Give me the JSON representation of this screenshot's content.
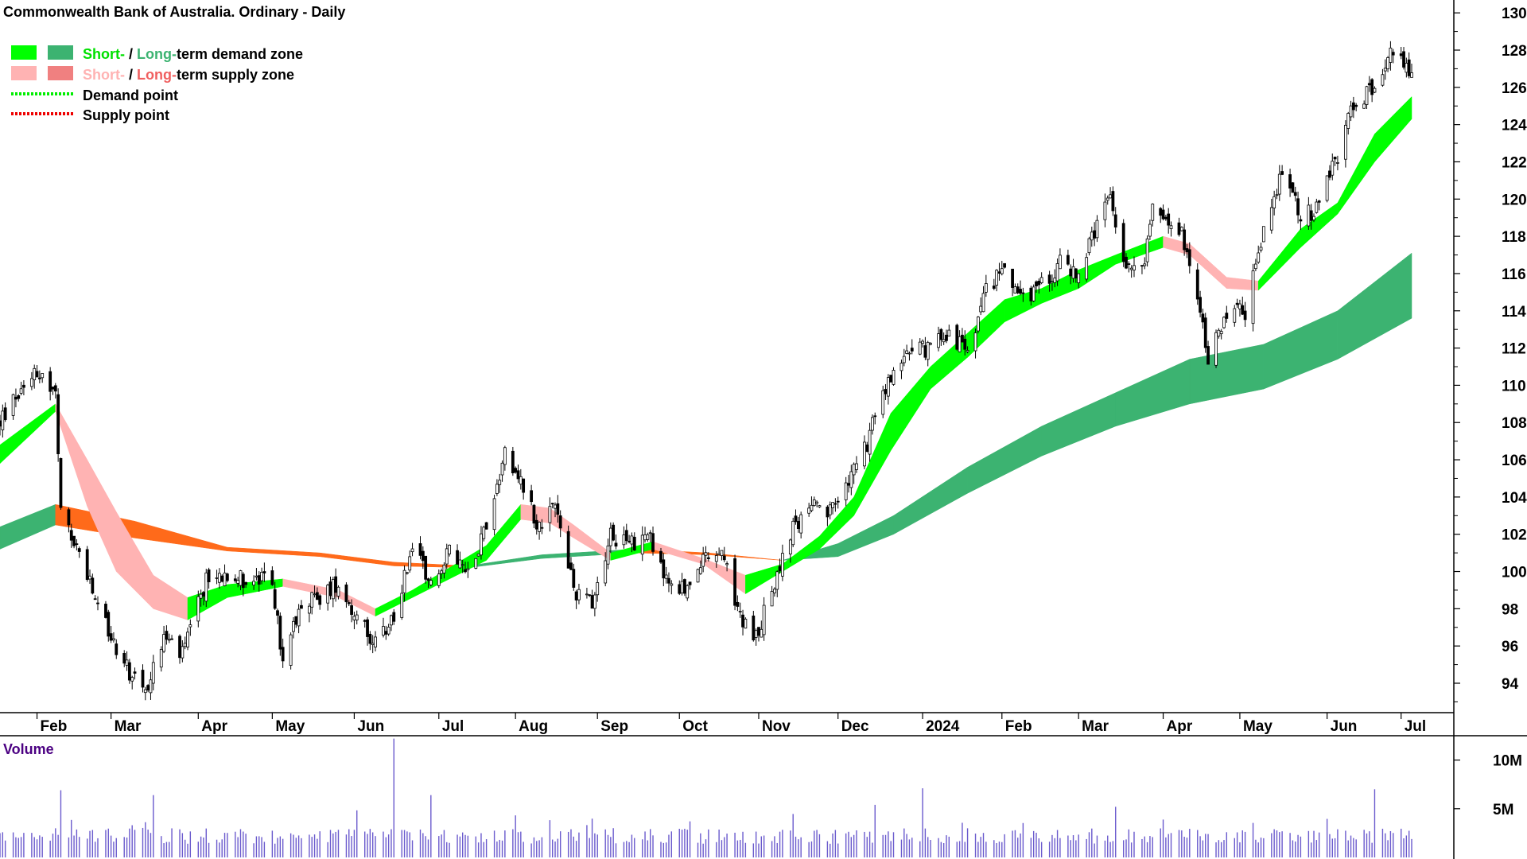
{
  "chart_data": {
    "type": "candlestick",
    "title": "Commonwealth Bank of Australia. Ordinary - Daily",
    "legend": {
      "demand_zone": {
        "short": "Short-",
        "sep": " / ",
        "long": "Long-",
        "rest": "term demand zone"
      },
      "supply_zone": {
        "short": "Short-",
        "sep": " / ",
        "long": "Long-",
        "rest": "term supply zone"
      },
      "demand_point": "Demand point",
      "supply_point": "Supply point"
    },
    "colors": {
      "short_demand": "#00ff00",
      "long_demand": "#3cb371",
      "short_supply": "#ffb3b3",
      "long_supply": "#ff6a1a",
      "demand_point": "#00ee00",
      "supply_point": "#ee0000",
      "candle": "#000000",
      "volume": "#6a5acd",
      "volume_label": "#4b0082"
    },
    "x_axis": {
      "type": "date",
      "range": [
        "2023-01-18",
        "2024-07-05"
      ],
      "tick_labels": [
        {
          "date": "2023-02-01",
          "label": "Feb"
        },
        {
          "date": "2023-03-01",
          "label": "Mar"
        },
        {
          "date": "2023-04-03",
          "label": "Apr"
        },
        {
          "date": "2023-05-01",
          "label": "May"
        },
        {
          "date": "2023-06-01",
          "label": "Jun"
        },
        {
          "date": "2023-07-03",
          "label": "Jul"
        },
        {
          "date": "2023-08-01",
          "label": "Aug"
        },
        {
          "date": "2023-09-01",
          "label": "Sep"
        },
        {
          "date": "2023-10-02",
          "label": "Oct"
        },
        {
          "date": "2023-11-01",
          "label": "Nov"
        },
        {
          "date": "2023-12-01",
          "label": "Dec"
        },
        {
          "date": "2024-01-02",
          "label": "2024"
        },
        {
          "date": "2024-02-01",
          "label": "Feb"
        },
        {
          "date": "2024-03-01",
          "label": "Mar"
        },
        {
          "date": "2024-04-02",
          "label": "Apr"
        },
        {
          "date": "2024-05-01",
          "label": "May"
        },
        {
          "date": "2024-06-03",
          "label": "Jun"
        },
        {
          "date": "2024-07-01",
          "label": "Jul"
        }
      ]
    },
    "y_axis": {
      "range": [
        92,
        130.5
      ],
      "ticks": [
        94,
        96,
        98,
        100,
        102,
        104,
        106,
        108,
        110,
        112,
        114,
        116,
        118,
        120,
        122,
        124,
        126,
        128,
        130
      ]
    },
    "price_path": [
      [
        "2023-01-18",
        108
      ],
      [
        "2023-01-31",
        111
      ],
      [
        "2023-02-08",
        109.5
      ],
      [
        "2023-02-10",
        103
      ],
      [
        "2023-02-17",
        101
      ],
      [
        "2023-02-24",
        98
      ],
      [
        "2023-03-06",
        95
      ],
      [
        "2023-03-14",
        93.5
      ],
      [
        "2023-03-21",
        96.5
      ],
      [
        "2023-03-28",
        95.5
      ],
      [
        "2023-04-06",
        99.5
      ],
      [
        "2023-04-14",
        100
      ],
      [
        "2023-04-21",
        99.5
      ],
      [
        "2023-05-01",
        99.5
      ],
      [
        "2023-05-05",
        95
      ],
      [
        "2023-05-12",
        98.5
      ],
      [
        "2023-05-19",
        98.5
      ],
      [
        "2023-05-26",
        99.5
      ],
      [
        "2023-06-02",
        97.5
      ],
      [
        "2023-06-09",
        96
      ],
      [
        "2023-06-16",
        97.5
      ],
      [
        "2023-06-23",
        101.5
      ],
      [
        "2023-06-30",
        99.5
      ],
      [
        "2023-07-07",
        101
      ],
      [
        "2023-07-14",
        100
      ],
      [
        "2023-07-21",
        102.5
      ],
      [
        "2023-07-28",
        106.5
      ],
      [
        "2023-08-03",
        105
      ],
      [
        "2023-08-09",
        102.5
      ],
      [
        "2023-08-16",
        103.5
      ],
      [
        "2023-08-23",
        99
      ],
      [
        "2023-08-30",
        98.5
      ],
      [
        "2023-09-06",
        102
      ],
      [
        "2023-09-13",
        101.5
      ],
      [
        "2023-09-20",
        102
      ],
      [
        "2023-09-27",
        99.5
      ],
      [
        "2023-10-04",
        99
      ],
      [
        "2023-10-11",
        100.5
      ],
      [
        "2023-10-18",
        101
      ],
      [
        "2023-10-25",
        97.5
      ],
      [
        "2023-10-31",
        96.5
      ],
      [
        "2023-11-06",
        99
      ],
      [
        "2023-11-13",
        102
      ],
      [
        "2023-11-20",
        103.5
      ],
      [
        "2023-11-27",
        103
      ],
      [
        "2023-12-04",
        104.5
      ],
      [
        "2023-12-11",
        106.5
      ],
      [
        "2023-12-18",
        109.5
      ],
      [
        "2023-12-27",
        112
      ],
      [
        "2024-01-05",
        112
      ],
      [
        "2024-01-12",
        113
      ],
      [
        "2024-01-19",
        111.5
      ],
      [
        "2024-01-26",
        115
      ],
      [
        "2024-02-02",
        116.5
      ],
      [
        "2024-02-09",
        114.5
      ],
      [
        "2024-02-16",
        115.5
      ],
      [
        "2024-02-23",
        116.5
      ],
      [
        "2024-03-01",
        116
      ],
      [
        "2024-03-08",
        118.5
      ],
      [
        "2024-03-13",
        120
      ],
      [
        "2024-03-19",
        116
      ],
      [
        "2024-03-26",
        117
      ],
      [
        "2024-03-29",
        119.5
      ],
      [
        "2024-04-05",
        119
      ],
      [
        "2024-04-11",
        117.5
      ],
      [
        "2024-04-16",
        114
      ],
      [
        "2024-04-19",
        111.5
      ],
      [
        "2024-04-26",
        114
      ],
      [
        "2024-05-03",
        114
      ],
      [
        "2024-05-10",
        118.5
      ],
      [
        "2024-05-17",
        121.5
      ],
      [
        "2024-05-24",
        119
      ],
      [
        "2024-05-31",
        119.5
      ],
      [
        "2024-06-06",
        122
      ],
      [
        "2024-06-13",
        125
      ],
      [
        "2024-06-20",
        126
      ],
      [
        "2024-06-27",
        128
      ],
      [
        "2024-07-05",
        126.5
      ]
    ],
    "short_zone": [
      {
        "date": "2023-01-18",
        "a": 105.8,
        "b": 106.8
      },
      {
        "date": "2023-02-08",
        "a": 108.6,
        "b": 109
      },
      {
        "date": "2023-02-20",
        "a": 103.5,
        "b": 106
      },
      {
        "date": "2023-03-03",
        "a": 100,
        "b": 103.2
      },
      {
        "date": "2023-03-17",
        "a": 98,
        "b": 99.8
      },
      {
        "date": "2023-03-30",
        "a": 97.4,
        "b": 98.6
      },
      {
        "date": "2023-04-14",
        "a": 98.6,
        "b": 99.3
      },
      {
        "date": "2023-05-05",
        "a": 99.2,
        "b": 99.6
      },
      {
        "date": "2023-05-26",
        "a": 98.6,
        "b": 99
      },
      {
        "date": "2023-06-09",
        "a": 97.6,
        "b": 98
      },
      {
        "date": "2023-06-23",
        "a": 98.6,
        "b": 99
      },
      {
        "date": "2023-07-07",
        "a": 99.6,
        "b": 100.2
      },
      {
        "date": "2023-07-21",
        "a": 100.6,
        "b": 101.4
      },
      {
        "date": "2023-08-03",
        "a": 102.8,
        "b": 103.6
      },
      {
        "date": "2023-08-14",
        "a": 102.6,
        "b": 103.4
      },
      {
        "date": "2023-08-23",
        "a": 101.8,
        "b": 102.5
      },
      {
        "date": "2023-09-06",
        "a": 100.6,
        "b": 101
      },
      {
        "date": "2023-09-22",
        "a": 101.2,
        "b": 101.6
      },
      {
        "date": "2023-10-11",
        "a": 100.4,
        "b": 100.7
      },
      {
        "date": "2023-10-27",
        "a": 98.8,
        "b": 99.8
      },
      {
        "date": "2023-11-10",
        "a": 100,
        "b": 100.4
      },
      {
        "date": "2023-11-24",
        "a": 101.2,
        "b": 101.9
      },
      {
        "date": "2023-12-07",
        "a": 103,
        "b": 104
      },
      {
        "date": "2023-12-21",
        "a": 106.5,
        "b": 108.5
      },
      {
        "date": "2024-01-05",
        "a": 109.8,
        "b": 111
      },
      {
        "date": "2024-01-19",
        "a": 111.5,
        "b": 112.8
      },
      {
        "date": "2024-02-02",
        "a": 113.4,
        "b": 114.6
      },
      {
        "date": "2024-02-16",
        "a": 114.4,
        "b": 115.2
      },
      {
        "date": "2024-03-01",
        "a": 115.2,
        "b": 116.2
      },
      {
        "date": "2024-03-15",
        "a": 116.5,
        "b": 117
      },
      {
        "date": "2024-04-02",
        "a": 117.4,
        "b": 118
      },
      {
        "date": "2024-04-12",
        "a": 117,
        "b": 117.6
      },
      {
        "date": "2024-04-26",
        "a": 115.2,
        "b": 115.8
      },
      {
        "date": "2024-05-08",
        "a": 115.1,
        "b": 115.6
      },
      {
        "date": "2024-05-24",
        "a": 117.4,
        "b": 118.4
      },
      {
        "date": "2024-06-07",
        "a": 119.2,
        "b": 119.8
      },
      {
        "date": "2024-06-21",
        "a": 122,
        "b": 123.5
      },
      {
        "date": "2024-07-05",
        "a": 124.3,
        "b": 125.5
      }
    ],
    "long_zone": [
      {
        "date": "2023-01-18",
        "a": 101.2,
        "b": 102.4
      },
      {
        "date": "2023-02-08",
        "a": 102.5,
        "b": 103.6
      },
      {
        "date": "2023-03-10",
        "a": 101.8,
        "b": 102.7
      },
      {
        "date": "2023-04-14",
        "a": 101.1,
        "b": 101.3
      },
      {
        "date": "2023-05-19",
        "a": 100.8,
        "b": 101
      },
      {
        "date": "2023-06-16",
        "a": 100.3,
        "b": 100.5
      },
      {
        "date": "2023-07-14",
        "a": 100.2,
        "b": 100.3
      },
      {
        "date": "2023-08-11",
        "a": 100.7,
        "b": 100.9
      },
      {
        "date": "2023-09-15",
        "a": 101,
        "b": 101.2
      },
      {
        "date": "2023-10-13",
        "a": 100.9,
        "b": 101
      },
      {
        "date": "2023-11-10",
        "a": 100.6,
        "b": 100.6
      },
      {
        "date": "2023-12-01",
        "a": 100.8,
        "b": 101.5
      },
      {
        "date": "2023-12-22",
        "a": 102,
        "b": 103
      },
      {
        "date": "2024-01-19",
        "a": 104.2,
        "b": 105.6
      },
      {
        "date": "2024-02-16",
        "a": 106.2,
        "b": 107.8
      },
      {
        "date": "2024-03-15",
        "a": 107.8,
        "b": 109.6
      },
      {
        "date": "2024-04-12",
        "a": 109,
        "b": 111.4
      },
      {
        "date": "2024-05-10",
        "a": 109.8,
        "b": 112.2
      },
      {
        "date": "2024-06-07",
        "a": 111.4,
        "b": 114
      },
      {
        "date": "2024-07-05",
        "a": 113.6,
        "b": 117.1
      }
    ],
    "volume": {
      "label": "Volume",
      "ticks": [
        {
          "value": 10,
          "label": "10M"
        },
        {
          "value": 5,
          "label": "5M"
        }
      ],
      "range": [
        0,
        12.5
      ],
      "spikes": [
        {
          "date": "2023-02-10",
          "value": 6.9
        },
        {
          "date": "2023-03-17",
          "value": 6.4
        },
        {
          "date": "2023-06-16",
          "value": 12.2
        },
        {
          "date": "2023-06-30",
          "value": 6.4
        },
        {
          "date": "2023-12-15",
          "value": 5.4
        },
        {
          "date": "2024-01-02",
          "value": 7.1
        },
        {
          "date": "2024-03-15",
          "value": 5.2
        },
        {
          "date": "2024-06-21",
          "value": 7.0
        }
      ]
    }
  }
}
